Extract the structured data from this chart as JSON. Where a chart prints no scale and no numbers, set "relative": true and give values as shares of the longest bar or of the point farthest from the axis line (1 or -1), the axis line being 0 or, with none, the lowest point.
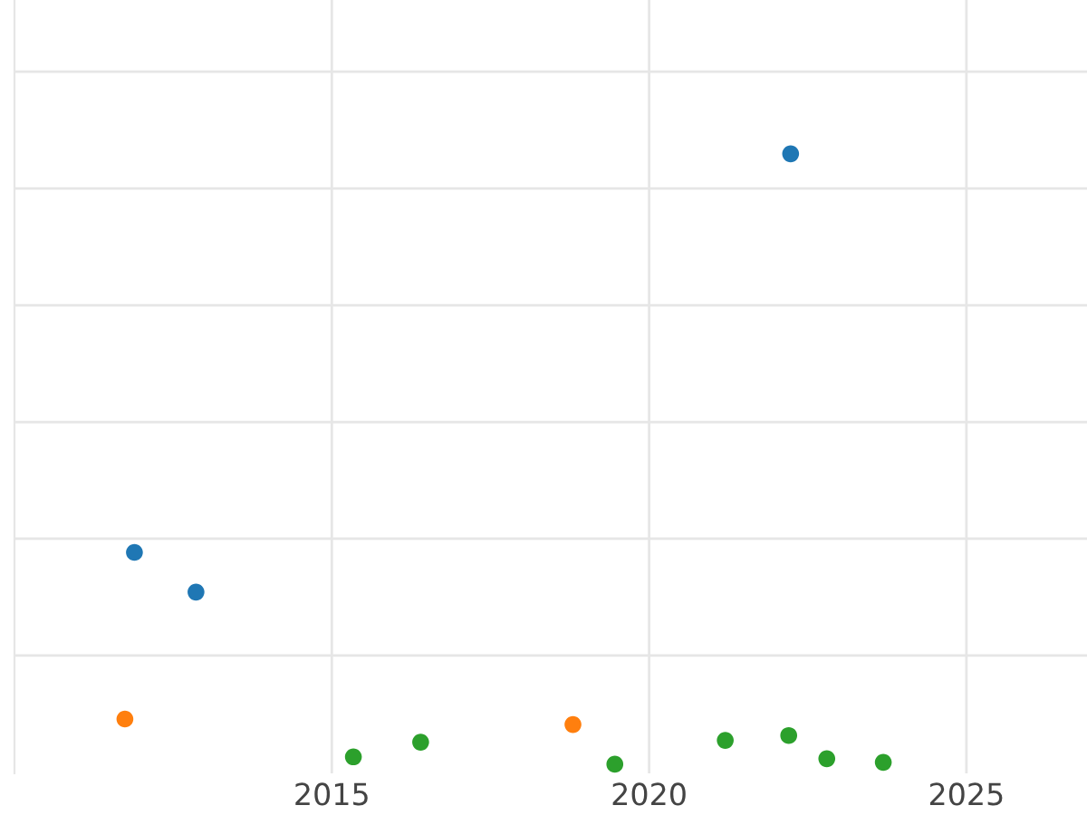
{
  "chart_data": {
    "type": "scatter",
    "relative": true,
    "xlim": [
      2010.0,
      2026.9
    ],
    "xticks": [
      2015,
      2020,
      2025
    ],
    "tick_labels": "x",
    "grid": true,
    "marker": "circle",
    "series": [
      {
        "color": "#1f77b4",
        "x": [
          2011.89,
          2012.86,
          2022.23
        ],
        "values": [
          0.347,
          0.282,
          1
        ]
      },
      {
        "color": "#ff7f0e",
        "x": [
          2011.74,
          2018.8
        ],
        "values": [
          0.074,
          0.065
        ]
      },
      {
        "color": "#2ca02c",
        "x": [
          2015.34,
          2016.4,
          2019.46,
          2021.2,
          2022.2,
          2022.8,
          2023.69
        ],
        "values": [
          0.012,
          0.036,
          0,
          0.039,
          0.047,
          0.009,
          0.003
        ]
      }
    ]
  }
}
